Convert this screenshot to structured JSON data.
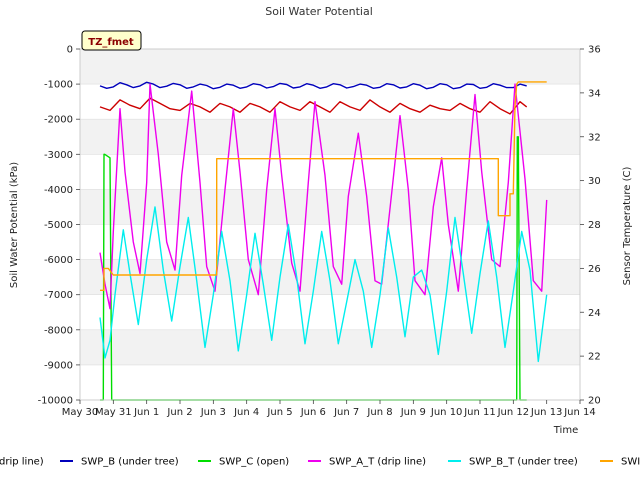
{
  "chart_data": {
    "type": "line",
    "title": "Soil Water Potential",
    "xlabel": "Time",
    "ylabel": "Soil Water Potential (kPa)",
    "y2label": "Sensor Temperature (C)",
    "badge": "TZ_fmet",
    "x_ticks": [
      "May 30",
      "May 31",
      "Jun 1",
      "Jun 2",
      "Jun 3",
      "Jun 4",
      "Jun 5",
      "Jun 6",
      "Jun 7",
      "Jun 8",
      "Jun 9",
      "Jun 10",
      "Jun 11",
      "Jun 12",
      "Jun 13",
      "Jun 14"
    ],
    "xlim": [
      0,
      15
    ],
    "ylim": [
      -10000,
      0
    ],
    "y_ticks": [
      0,
      -1000,
      -2000,
      -3000,
      -4000,
      -5000,
      -6000,
      -7000,
      -8000,
      -9000,
      -10000
    ],
    "y2lim": [
      20,
      36
    ],
    "y2_ticks": [
      20,
      22,
      24,
      26,
      28,
      30,
      32,
      34,
      36
    ],
    "grid": "horizontal bands",
    "legend_position": "bottom",
    "legend": [
      {
        "label": "drip line)",
        "color": "#cc0000"
      },
      {
        "label": "SWP_B (under tree)",
        "color": "#0000bb"
      },
      {
        "label": "SWP_C (open)",
        "color": "#00dd00"
      },
      {
        "label": "SWP_A_T (drip line)",
        "color": "#ee00ee"
      },
      {
        "label": "SWP_B_T (under tree)",
        "color": "#00eeee"
      },
      {
        "label": "SWI",
        "color": "#ffa500"
      }
    ],
    "series": [
      {
        "axis": "left",
        "color": "#0000bb",
        "x": [
          0.6,
          0.8,
          1.0,
          1.2,
          1.4,
          1.6,
          1.8,
          2.0,
          2.2,
          2.4,
          2.6,
          2.8,
          3.0,
          3.2,
          3.4,
          3.6,
          3.8,
          4.0,
          4.2,
          4.4,
          4.6,
          4.8,
          5.0,
          5.2,
          5.4,
          5.6,
          5.8,
          6.0,
          6.2,
          6.4,
          6.6,
          6.8,
          7.0,
          7.2,
          7.4,
          7.6,
          7.8,
          8.0,
          8.2,
          8.4,
          8.6,
          8.8,
          9.0,
          9.2,
          9.4,
          9.6,
          9.8,
          10.0,
          10.2,
          10.4,
          10.6,
          10.8,
          11.0,
          11.2,
          11.4,
          11.6,
          11.8,
          12.0,
          12.2,
          12.4,
          12.6,
          12.8,
          13.0,
          13.2,
          13.4
        ],
        "y": [
          -1050,
          -1120,
          -1080,
          -960,
          -1020,
          -1100,
          -1050,
          -950,
          -1000,
          -1100,
          -1060,
          -980,
          -1020,
          -1120,
          -1080,
          -1000,
          -1040,
          -1130,
          -1090,
          -1000,
          -1030,
          -1120,
          -1080,
          -990,
          -1020,
          -1110,
          -1070,
          -980,
          -1010,
          -1110,
          -1080,
          -990,
          -1030,
          -1120,
          -1080,
          -990,
          -1020,
          -1110,
          -1070,
          -1000,
          -1030,
          -1120,
          -1090,
          -990,
          -1020,
          -1110,
          -1080,
          -990,
          -1030,
          -1130,
          -1090,
          -990,
          -1020,
          -1130,
          -1100,
          -1000,
          -1010,
          -1120,
          -1090,
          -990,
          -1030,
          -1100,
          -1100,
          -1000,
          -1050
        ]
      },
      {
        "axis": "left",
        "color": "#cc0000",
        "x": [
          0.6,
          0.9,
          1.2,
          1.5,
          1.8,
          2.1,
          2.4,
          2.7,
          3.0,
          3.3,
          3.6,
          3.9,
          4.2,
          4.5,
          4.8,
          5.1,
          5.4,
          5.7,
          6.0,
          6.3,
          6.6,
          6.9,
          7.2,
          7.5,
          7.8,
          8.1,
          8.4,
          8.7,
          9.0,
          9.3,
          9.6,
          9.9,
          10.2,
          10.5,
          10.8,
          11.1,
          11.4,
          11.7,
          12.0,
          12.3,
          12.6,
          12.9,
          13.2,
          13.4
        ],
        "y": [
          -1650,
          -1750,
          -1450,
          -1600,
          -1700,
          -1400,
          -1550,
          -1700,
          -1750,
          -1550,
          -1650,
          -1800,
          -1550,
          -1650,
          -1800,
          -1550,
          -1650,
          -1800,
          -1500,
          -1650,
          -1750,
          -1500,
          -1650,
          -1800,
          -1500,
          -1650,
          -1750,
          -1450,
          -1650,
          -1800,
          -1550,
          -1700,
          -1800,
          -1600,
          -1700,
          -1750,
          -1550,
          -1700,
          -1800,
          -1500,
          -1700,
          -1850,
          -1500,
          -1650
        ]
      },
      {
        "axis": "left",
        "color": "#00dd00",
        "x": [
          0.6,
          0.7,
          0.72,
          0.74,
          0.9,
          0.95,
          1.0,
          13.1,
          13.12,
          13.15,
          13.2,
          13.22,
          13.4
        ],
        "y": [
          -10000,
          -10000,
          -3000,
          -3000,
          -3100,
          -10000,
          -10000,
          -10000,
          -2500,
          -2500,
          -10000,
          -10000,
          -10000
        ]
      },
      {
        "axis": "left",
        "color": "#ee00ee",
        "x": [
          0.6,
          0.75,
          0.9,
          1.0,
          1.2,
          1.35,
          1.6,
          1.8,
          2.0,
          2.1,
          2.35,
          2.6,
          2.85,
          3.05,
          3.35,
          3.6,
          3.8,
          4.05,
          4.35,
          4.6,
          4.8,
          5.05,
          5.35,
          5.6,
          5.85,
          6.05,
          6.35,
          6.6,
          6.85,
          7.05,
          7.35,
          7.6,
          7.85,
          8.05,
          8.35,
          8.6,
          8.85,
          9.05,
          9.35,
          9.6,
          9.85,
          10.05,
          10.35,
          10.6,
          10.85,
          11.05,
          11.35,
          11.6,
          11.85,
          12.05,
          12.35,
          12.6,
          12.85,
          13.05,
          13.35,
          13.6,
          13.85,
          14.0
        ],
        "y": [
          -5800,
          -6700,
          -7400,
          -5200,
          -1700,
          -3500,
          -5500,
          -6400,
          -3800,
          -1000,
          -3000,
          -5500,
          -6300,
          -3600,
          -1200,
          -3800,
          -6200,
          -6900,
          -4000,
          -1700,
          -3500,
          -6000,
          -7000,
          -4000,
          -1700,
          -3600,
          -6100,
          -6900,
          -3800,
          -1500,
          -3600,
          -6200,
          -6700,
          -4200,
          -2400,
          -4200,
          -6600,
          -6700,
          -4100,
          -1900,
          -4000,
          -6600,
          -7000,
          -4500,
          -3100,
          -5000,
          -6900,
          -4000,
          -1300,
          -3500,
          -6000,
          -6200,
          -3800,
          -1000,
          -3700,
          -6600,
          -6900,
          -4300
        ]
      },
      {
        "axis": "left",
        "color": "#00eeee",
        "x": [
          0.6,
          0.75,
          0.9,
          1.05,
          1.3,
          1.5,
          1.75,
          2.0,
          2.25,
          2.5,
          2.75,
          3.0,
          3.25,
          3.5,
          3.75,
          4.0,
          4.25,
          4.5,
          4.75,
          5.0,
          5.25,
          5.5,
          5.75,
          6.0,
          6.25,
          6.5,
          6.75,
          7.0,
          7.25,
          7.5,
          7.75,
          8.0,
          8.25,
          8.5,
          8.75,
          9.0,
          9.25,
          9.5,
          9.75,
          10.0,
          10.25,
          10.5,
          10.75,
          11.0,
          11.25,
          11.5,
          11.75,
          12.0,
          12.25,
          12.5,
          12.75,
          13.0,
          13.25,
          13.5,
          13.75,
          14.0
        ],
        "y": [
          -7650,
          -8800,
          -8300,
          -7000,
          -5150,
          -6400,
          -7850,
          -6000,
          -4500,
          -6300,
          -7750,
          -6200,
          -4800,
          -6600,
          -8500,
          -7000,
          -5200,
          -6600,
          -8600,
          -7000,
          -5250,
          -6700,
          -8300,
          -6500,
          -5000,
          -6500,
          -8400,
          -6900,
          -5200,
          -6600,
          -8400,
          -7200,
          -6000,
          -6900,
          -8500,
          -7000,
          -5100,
          -6500,
          -8200,
          -6500,
          -6300,
          -7000,
          -8700,
          -6900,
          -4800,
          -6400,
          -8100,
          -6400,
          -4900,
          -6500,
          -8500,
          -6900,
          -5200,
          -6300,
          -8900,
          -7000
        ]
      },
      {
        "axis": "right",
        "color": "#ffa500",
        "x": [
          0.6,
          0.72,
          0.72,
          0.85,
          1.0,
          1.0,
          4.0,
          4.1,
          4.1,
          4.5,
          7.0,
          12.0,
          12.55,
          12.55,
          12.9,
          12.9,
          13.0,
          13.05,
          13.1,
          13.15,
          13.2,
          14.0
        ],
        "y": [
          25.0,
          25.0,
          26.0,
          26.0,
          25.7,
          25.7,
          25.7,
          25.7,
          31.0,
          31.0,
          31.0,
          31.0,
          31.0,
          28.4,
          28.4,
          29.4,
          29.4,
          33.4,
          34.4,
          34.5,
          34.5,
          34.5
        ]
      }
    ]
  }
}
